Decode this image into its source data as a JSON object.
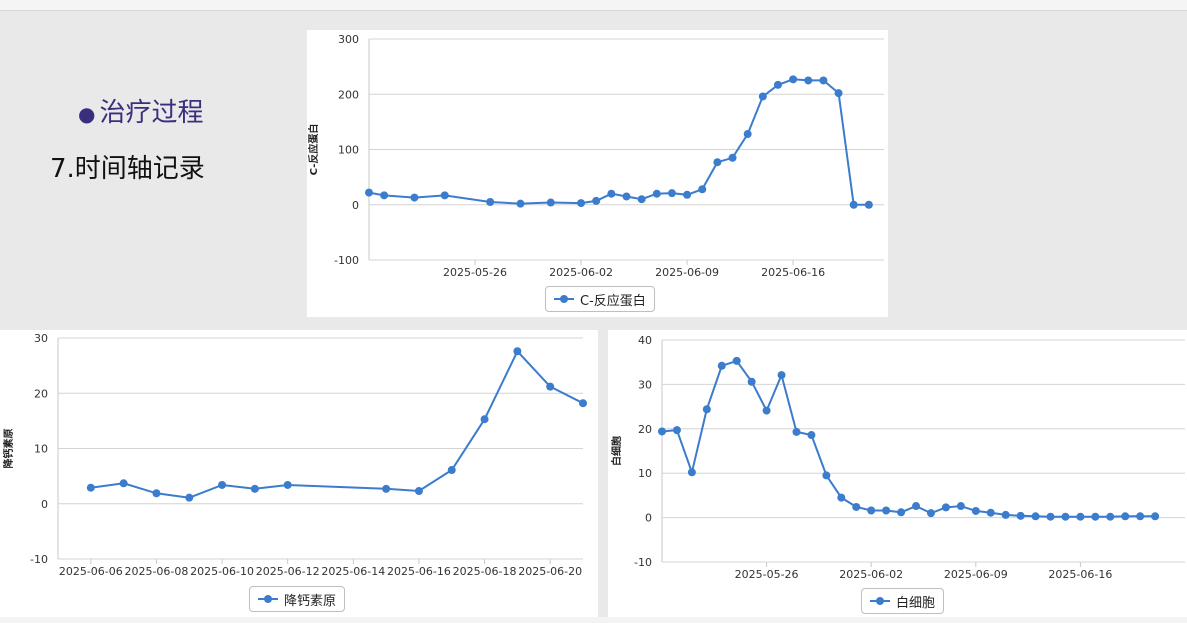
{
  "slide": {
    "bullet": "治疗过程",
    "subtitle": "7.时间轴记录"
  },
  "colors": {
    "series": "#3b7ccc",
    "grid": "#d4d4d4"
  },
  "chart_data": [
    {
      "type": "line",
      "id": "crp",
      "ylabel": "C-反应蛋白",
      "ylim": [
        -100,
        300
      ],
      "yticks": [
        -100,
        0,
        100,
        200,
        300
      ],
      "xlim": [
        "2025-05-19",
        "2025-06-22"
      ],
      "xticks": [
        "2025-05-26",
        "2025-06-02",
        "2025-06-09",
        "2025-06-16"
      ],
      "series": [
        {
          "name": "C-反应蛋白",
          "x": [
            "2025-05-19",
            "2025-05-20",
            "2025-05-22",
            "2025-05-24",
            "2025-05-27",
            "2025-05-29",
            "2025-05-31",
            "2025-06-02",
            "2025-06-03",
            "2025-06-04",
            "2025-06-05",
            "2025-06-06",
            "2025-06-07",
            "2025-06-08",
            "2025-06-09",
            "2025-06-10",
            "2025-06-11",
            "2025-06-12",
            "2025-06-13",
            "2025-06-14",
            "2025-06-15",
            "2025-06-16",
            "2025-06-17",
            "2025-06-18",
            "2025-06-19",
            "2025-06-20",
            "2025-06-21"
          ],
          "y": [
            22,
            17,
            13,
            17,
            5,
            2,
            4,
            3,
            7,
            20,
            15,
            10,
            20,
            21,
            18,
            28,
            77,
            85,
            128,
            196,
            217,
            227,
            225,
            225,
            202,
            0,
            0
          ]
        }
      ]
    },
    {
      "type": "line",
      "id": "pct",
      "ylabel": "降钙素原",
      "ylim": [
        -10,
        30
      ],
      "yticks": [
        -10,
        0,
        10,
        20,
        30
      ],
      "xlim": [
        "2025-06-05",
        "2025-06-21"
      ],
      "xticks": [
        "2025-06-06",
        "2025-06-08",
        "2025-06-10",
        "2025-06-12",
        "2025-06-14",
        "2025-06-16",
        "2025-06-18",
        "2025-06-20"
      ],
      "series": [
        {
          "name": "降钙素原",
          "x": [
            "2025-06-06",
            "2025-06-07",
            "2025-06-08",
            "2025-06-09",
            "2025-06-10",
            "2025-06-11",
            "2025-06-12",
            "2025-06-15",
            "2025-06-16",
            "2025-06-17",
            "2025-06-18",
            "2025-06-19",
            "2025-06-20",
            "2025-06-21"
          ],
          "y": [
            2.9,
            3.7,
            1.9,
            1.1,
            3.4,
            2.7,
            3.4,
            2.7,
            2.3,
            6.1,
            15.3,
            27.6,
            21.2,
            18.2
          ]
        }
      ]
    },
    {
      "type": "line",
      "id": "wbc",
      "ylabel": "白细胞",
      "ylim": [
        -10,
        40
      ],
      "yticks": [
        -10,
        0,
        10,
        20,
        30,
        40
      ],
      "xlim": [
        "2025-05-19",
        "2025-06-23"
      ],
      "xticks": [
        "2025-05-26",
        "2025-06-02",
        "2025-06-09",
        "2025-06-16"
      ],
      "series": [
        {
          "name": "白细胞",
          "x": [
            "2025-05-19",
            "2025-05-20",
            "2025-05-21",
            "2025-05-22",
            "2025-05-23",
            "2025-05-24",
            "2025-05-25",
            "2025-05-26",
            "2025-05-27",
            "2025-05-28",
            "2025-05-29",
            "2025-05-30",
            "2025-05-31",
            "2025-06-01",
            "2025-06-02",
            "2025-06-03",
            "2025-06-04",
            "2025-06-05",
            "2025-06-06",
            "2025-06-07",
            "2025-06-08",
            "2025-06-09",
            "2025-06-10",
            "2025-06-11",
            "2025-06-12",
            "2025-06-13",
            "2025-06-14",
            "2025-06-15",
            "2025-06-16",
            "2025-06-17",
            "2025-06-18",
            "2025-06-19",
            "2025-06-20",
            "2025-06-21"
          ],
          "y": [
            19.4,
            19.7,
            10.2,
            24.4,
            34.2,
            35.3,
            30.6,
            24.1,
            32.1,
            19.3,
            18.6,
            9.5,
            4.5,
            2.4,
            1.6,
            1.6,
            1.2,
            2.6,
            1.0,
            2.3,
            2.6,
            1.5,
            1.1,
            0.6,
            0.4,
            0.3,
            0.2,
            0.2,
            0.2,
            0.2,
            0.2,
            0.3,
            0.3,
            0.3
          ]
        }
      ]
    }
  ]
}
